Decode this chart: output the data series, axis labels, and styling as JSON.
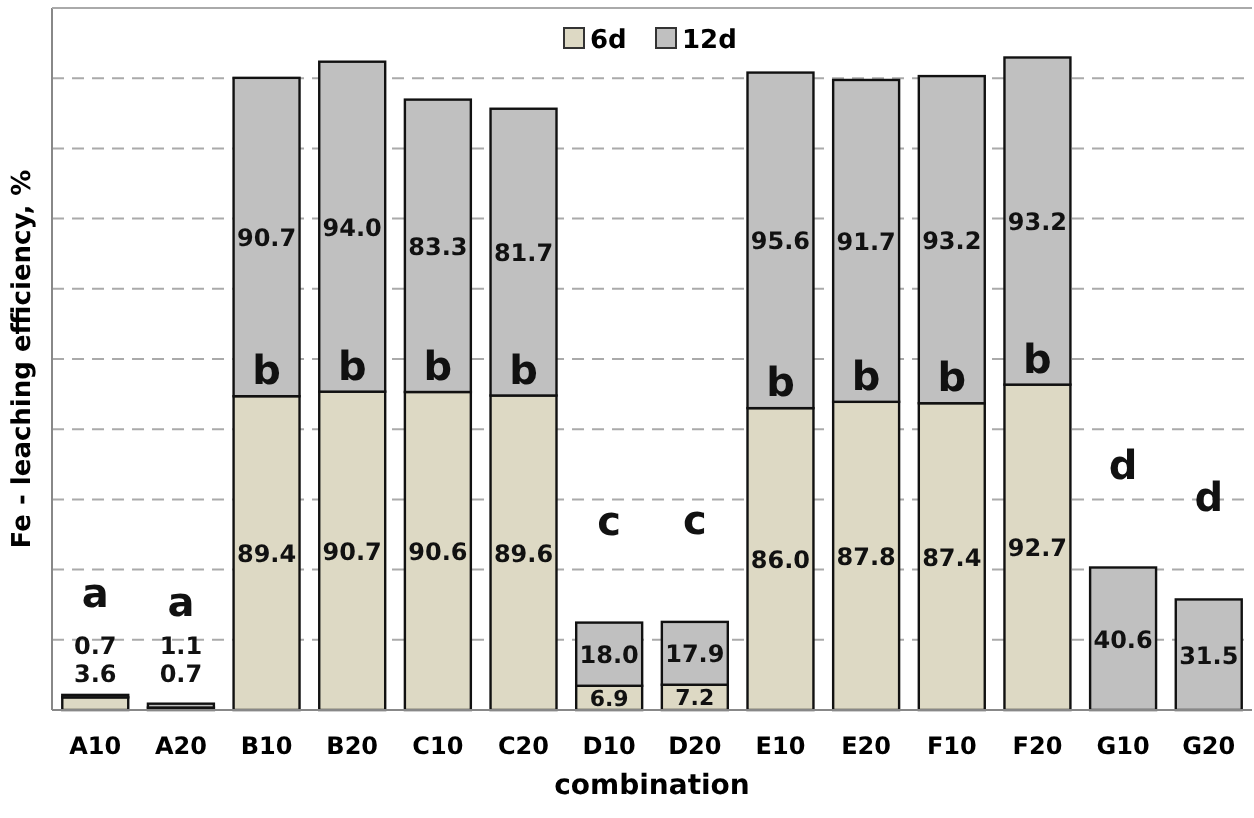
{
  "chart_data": {
    "type": "bar",
    "xlabel": "combination",
    "ylabel": "Fe - leaching efficiency, %",
    "categories": [
      "A10",
      "A20",
      "B10",
      "B20",
      "C10",
      "C20",
      "D10",
      "D20",
      "E10",
      "E20",
      "F10",
      "F20",
      "G10",
      "G20"
    ],
    "stacked": true,
    "grid": "y",
    "legend": "top",
    "tick_labels": "x",
    "ylim": [
      0,
      200
    ],
    "yticks": [
      {
        "value": 20,
        "label": null
      },
      {
        "value": 40,
        "label": null
      },
      {
        "value": 60,
        "label": null
      },
      {
        "value": 80,
        "label": null
      },
      {
        "value": 100,
        "label": null
      },
      {
        "value": 120,
        "label": null
      },
      {
        "value": 140,
        "label": null
      },
      {
        "value": 160,
        "label": null
      },
      {
        "value": 180,
        "label": null
      }
    ],
    "series": [
      {
        "name": "6d",
        "color": "#ddd9c4",
        "values": [
          3.6,
          0.7,
          89.4,
          90.7,
          90.6,
          89.6,
          6.9,
          7.2,
          86.0,
          87.8,
          87.4,
          92.7,
          null,
          null
        ],
        "value_labels": [
          "3.6",
          "0.7",
          "89.4",
          "90.7",
          "90.6",
          "89.6",
          "6.9",
          "7.2",
          "86.0",
          "87.8",
          "87.4",
          "92.7",
          null,
          null
        ]
      },
      {
        "name": "12d",
        "color": "#c0c0c0",
        "values": [
          0.7,
          1.1,
          90.7,
          94.0,
          83.3,
          81.7,
          18.0,
          17.9,
          95.6,
          91.7,
          93.2,
          93.2,
          40.6,
          31.5
        ],
        "value_labels": [
          "0.7",
          "1.1",
          "90.7",
          "94.0",
          "83.3",
          "81.7",
          "18.0",
          "17.9",
          "95.6",
          "91.7",
          "93.2",
          "93.2",
          "40.6",
          "31.5"
        ]
      }
    ],
    "annotations": [
      "a",
      "a",
      "b",
      "b",
      "b",
      "b",
      "c",
      "c",
      "b",
      "b",
      "b",
      "b",
      "d",
      "d"
    ]
  }
}
